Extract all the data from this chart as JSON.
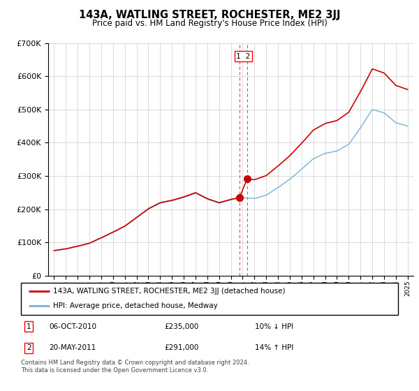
{
  "title": "143A, WATLING STREET, ROCHESTER, ME2 3JJ",
  "subtitle": "Price paid vs. HM Land Registry's House Price Index (HPI)",
  "ylim": [
    0,
    700000
  ],
  "hpi_color": "#7ab0d4",
  "price_color": "#cc0000",
  "dashed_color": "#cc0000",
  "legend_label_price": "143A, WATLING STREET, ROCHESTER, ME2 3JJ (detached house)",
  "legend_label_hpi": "HPI: Average price, detached house, Medway",
  "transaction1_date": "06-OCT-2010",
  "transaction1_price": "£235,000",
  "transaction1_hpi": "10% ↓ HPI",
  "transaction2_date": "20-MAY-2011",
  "transaction2_price": "£291,000",
  "transaction2_hpi": "14% ↑ HPI",
  "footer": "Contains HM Land Registry data © Crown copyright and database right 2024.\nThis data is licensed under the Open Government Licence v3.0.",
  "marker1_x": 2010.75,
  "marker1_y": 235000,
  "marker2_x": 2011.38,
  "marker2_y": 291000,
  "dashed_x1": 2010.75,
  "dashed_x2": 2011.38,
  "years_hpi": [
    1995,
    1996,
    1997,
    1998,
    1999,
    2000,
    2001,
    2002,
    2003,
    2004,
    2005,
    2006,
    2007,
    2008,
    2009,
    2010,
    2011,
    2012,
    2013,
    2014,
    2015,
    2016,
    2017,
    2018,
    2019,
    2020,
    2021,
    2022,
    2023,
    2024,
    2025
  ],
  "hpi_values": [
    75000,
    80000,
    88000,
    97000,
    113000,
    130000,
    148000,
    174000,
    200000,
    218000,
    225000,
    235000,
    248000,
    230000,
    218000,
    228000,
    235000,
    232000,
    242000,
    265000,
    290000,
    320000,
    352000,
    368000,
    375000,
    395000,
    445000,
    500000,
    490000,
    460000,
    450000
  ],
  "xlim_left": 1994.5,
  "xlim_right": 2025.5
}
